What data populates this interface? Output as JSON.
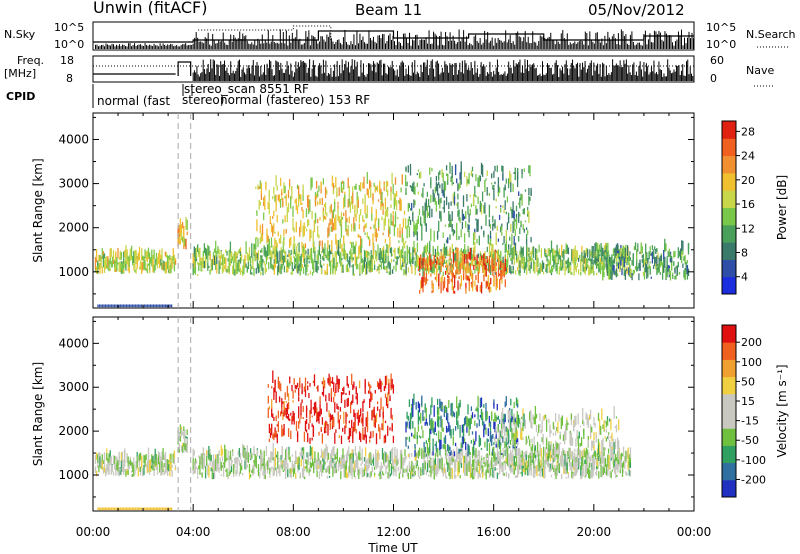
{
  "header": {
    "station": "Unwin (fitACF)",
    "beam": "Beam 11",
    "date": "05/Nov/2012"
  },
  "panels": {
    "nsky_label": "N.Sky",
    "nsky_ticks": [
      "10^5",
      "10^0"
    ],
    "nsearch_label": "N.Search",
    "freq_label_1": "Freq.",
    "freq_label_2": "[MHz]",
    "freq_ticks": [
      "18",
      "8"
    ],
    "nave_label": "Nave",
    "nave_ticks": [
      "60",
      "0"
    ],
    "cpid_label": "CPID",
    "cpid_text_1": "normal (fast",
    "cpid_text_2": "stereo_scan 8551 RF",
    "cpid_text_3": "stereo)",
    "cpid_text_4": "normal (fast",
    "cpid_text_5": "stereo) 153 RF"
  },
  "chart_data": [
    {
      "type": "heatmap",
      "name": "power",
      "ylabel": "Slant Range [km]",
      "ylim": [
        180,
        4600
      ],
      "yticks": [
        1000,
        2000,
        3000,
        4000
      ],
      "xlim": [
        0,
        24
      ],
      "xticks": [
        "00:00",
        "04:00",
        "08:00",
        "12:00",
        "16:00",
        "20:00",
        "00:00"
      ],
      "colorbar": {
        "label": "Power [dB]",
        "ticks": [
          "4",
          "8",
          "12",
          "16",
          "20",
          "24",
          "28"
        ],
        "colors": [
          "#1a2ee0",
          "#2e4ea8",
          "#3a7a6a",
          "#4aa05a",
          "#7ac84a",
          "#c8d64a",
          "#f0c030",
          "#f09030",
          "#f06020",
          "#e02010"
        ]
      },
      "regions": [
        {
          "t0": 0.1,
          "t1": 3.3,
          "r0": 950,
          "r1": 1350,
          "level": 0.55
        },
        {
          "t0": 3.4,
          "t1": 3.8,
          "r0": 1500,
          "r1": 2000,
          "level": 0.65
        },
        {
          "t0": 4.0,
          "t1": 21.5,
          "r0": 900,
          "r1": 1450,
          "level": 0.45
        },
        {
          "t0": 6.5,
          "t1": 12.5,
          "r0": 1500,
          "r1": 3000,
          "level": 0.6
        },
        {
          "t0": 13.0,
          "t1": 16.5,
          "r0": 500,
          "r1": 1300,
          "level": 0.8
        },
        {
          "t0": 12.5,
          "t1": 17.5,
          "r0": 1600,
          "r1": 3300,
          "level": 0.35
        },
        {
          "t0": 20.0,
          "t1": 23.8,
          "r0": 800,
          "r1": 1500,
          "level": 0.35
        }
      ]
    },
    {
      "type": "heatmap",
      "name": "velocity",
      "ylabel": "Slant Range [km]",
      "ylim": [
        180,
        4600
      ],
      "yticks": [
        1000,
        2000,
        3000,
        4000
      ],
      "xlim": [
        0,
        24
      ],
      "xticks": [
        "00:00",
        "04:00",
        "08:00",
        "12:00",
        "16:00",
        "20:00",
        "00:00"
      ],
      "xlabel": "Time UT",
      "colorbar": {
        "label": "Velocity [m s⁻¹]",
        "ticks": [
          "200",
          "100",
          "50",
          "15",
          "-15",
          "-50",
          "-100",
          "-200"
        ],
        "colors": [
          "#2030c0",
          "#3070a0",
          "#30a060",
          "#70c040",
          "#c8c8c0",
          "#c8c8c0",
          "#f0d040",
          "#f0a030",
          "#f06020",
          "#e01010"
        ]
      },
      "regions": [
        {
          "t0": 0.1,
          "t1": 3.3,
          "r0": 950,
          "r1": 1350,
          "level": 0.45
        },
        {
          "t0": 3.4,
          "t1": 3.8,
          "r0": 1500,
          "r1": 2000,
          "level": 0.45
        },
        {
          "t0": 4.0,
          "t1": 21.5,
          "r0": 900,
          "r1": 1450,
          "level": 0.45
        },
        {
          "t0": 7.0,
          "t1": 12.0,
          "r0": 1700,
          "r1": 3100,
          "level": 0.95
        },
        {
          "t0": 12.5,
          "t1": 17.0,
          "r0": 1400,
          "r1": 2600,
          "level": 0.2
        },
        {
          "t0": 16.0,
          "t1": 21.0,
          "r0": 1100,
          "r1": 2300,
          "level": 0.45
        }
      ]
    }
  ]
}
